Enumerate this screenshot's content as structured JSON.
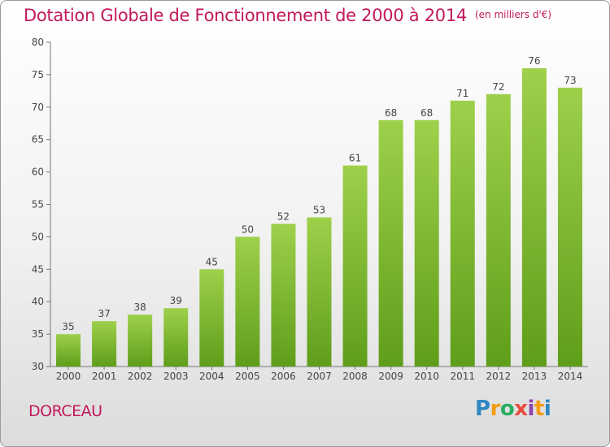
{
  "title": "Dotation Globale de Fonctionnement de 2000 à 2014",
  "unit_note": "(en milliers d'€)",
  "place_name": "DORCEAU",
  "logo": {
    "text": "Proxiti",
    "letters": [
      "P",
      "r",
      "o",
      "x",
      "i",
      "t",
      "i"
    ],
    "colors": [
      "#2e86c1",
      "#f39c12",
      "#27ae60",
      "#e74c3c",
      "#8e44ad",
      "#f39c12",
      "#2e86c1"
    ]
  },
  "colors": {
    "title": "#c2185b",
    "bar_top": "#9ed04b",
    "bar_bottom": "#5f9e1a",
    "axis": "#777777"
  },
  "chart_data": {
    "type": "bar",
    "title": "Dotation Globale de Fonctionnement de 2000 à 2014",
    "xlabel": "",
    "ylabel": "",
    "categories": [
      "2000",
      "2001",
      "2002",
      "2003",
      "2004",
      "2005",
      "2006",
      "2007",
      "2008",
      "2009",
      "2010",
      "2011",
      "2012",
      "2013",
      "2014"
    ],
    "values": [
      35,
      37,
      38,
      39,
      45,
      50,
      52,
      53,
      61,
      68,
      68,
      71,
      72,
      76,
      73
    ],
    "ylim": [
      30,
      80
    ],
    "yticks": [
      30,
      35,
      40,
      45,
      50,
      55,
      60,
      65,
      70,
      75,
      80
    ],
    "grid": false,
    "legend": "none"
  }
}
